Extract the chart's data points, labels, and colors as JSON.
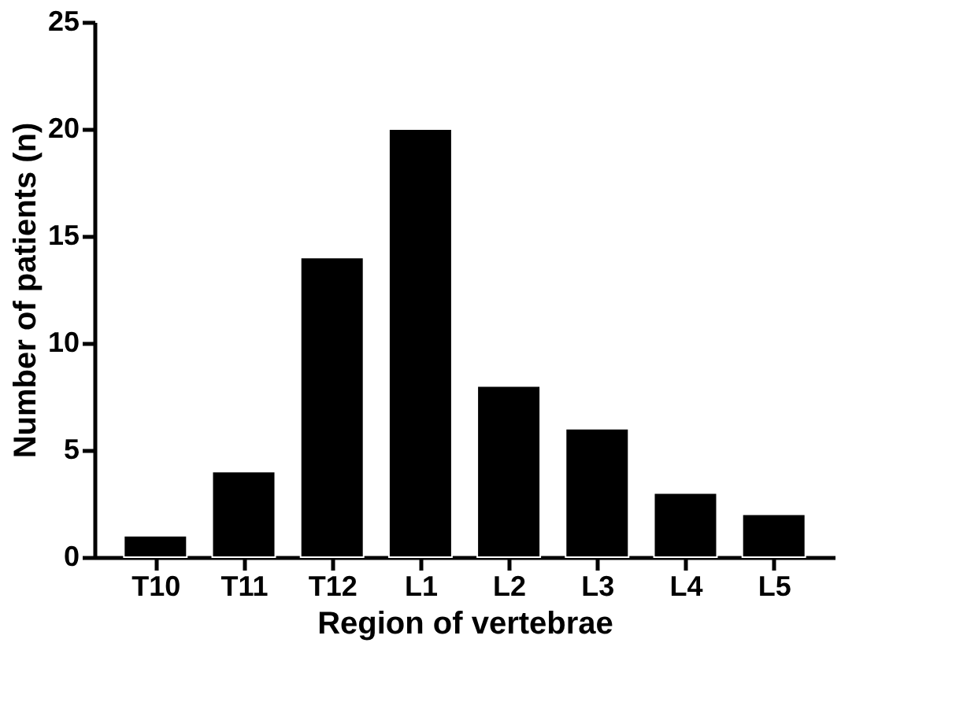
{
  "chart_data": {
    "type": "bar",
    "xlabel": "Region of vertebrae",
    "ylabel": "Number of patients (n)",
    "categories": [
      "T10",
      "T11",
      "T12",
      "L1",
      "L2",
      "L3",
      "L4",
      "L5"
    ],
    "values": [
      1,
      4,
      14,
      20,
      8,
      6,
      3,
      2
    ],
    "color": "#000000",
    "ylim": [
      0,
      25
    ],
    "yticks": [
      0,
      5,
      10,
      15,
      20,
      25
    ],
    "grid": false
  }
}
